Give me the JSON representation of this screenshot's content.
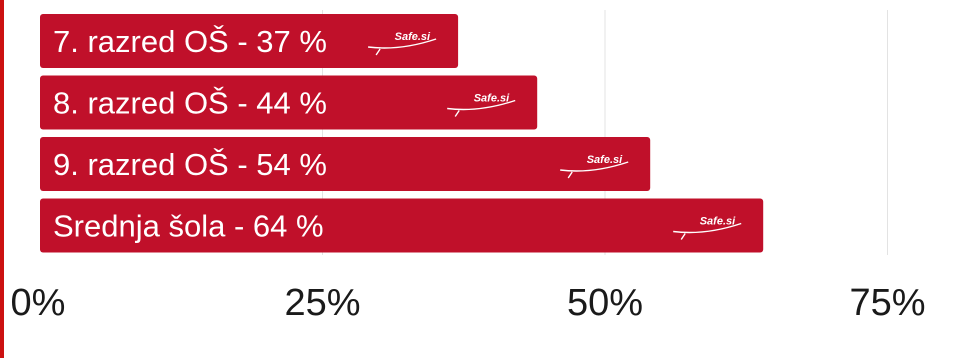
{
  "chart_data": {
    "type": "bar",
    "orientation": "horizontal",
    "categories": [
      "7. razred OŠ",
      "8. razred OŠ",
      "9. razred OŠ",
      "Srednja šola"
    ],
    "values": [
      37,
      44,
      54,
      64
    ],
    "bar_labels": [
      "7. razred OŠ - 37 %",
      "8. razred OŠ - 44 %",
      "9. razred OŠ - 54 %",
      "Srednja šola - 64 %"
    ],
    "xlim": [
      0,
      75
    ],
    "x_ticks": [
      0,
      25,
      50,
      75
    ],
    "x_tick_labels": [
      "0%",
      "25%",
      "50%",
      "75%"
    ],
    "grid": true,
    "bar_color": "#c0102a",
    "axis_color": "#cc1111",
    "watermark": "Safe.si"
  }
}
